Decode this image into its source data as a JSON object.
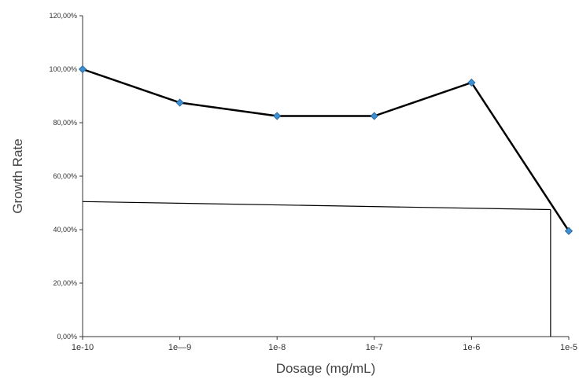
{
  "chart_data": {
    "type": "line",
    "xlabel": "Dosage  (mg/mL)",
    "ylabel": "Growth Rate",
    "x_scale": "log",
    "categories": [
      "1e-10",
      "1e—9",
      "1e-8",
      "1e-7",
      "1e-6",
      "1e-5"
    ],
    "x": [
      1e-10,
      1e-09,
      1e-08,
      1e-07,
      1e-06,
      1e-05
    ],
    "ylim": [
      0,
      120
    ],
    "y_ticks": [
      "0,00%",
      "20,00%",
      "40,00%",
      "60,00%",
      "80,00%",
      "100,00%",
      "120,00%"
    ],
    "grid": false,
    "legend": "none",
    "series": [
      {
        "values": [
          100,
          87.5,
          82.5,
          82.5,
          95,
          39.5
        ],
        "color": "#000000",
        "marker_color": "#3d8fd1"
      }
    ],
    "annotations": [
      {
        "type": "trend-line",
        "from": {
          "x": 1e-10,
          "y": 50.5
        },
        "to": {
          "x": 6.5e-06,
          "y": 47.5
        },
        "color": "#000000"
      },
      {
        "type": "drop-line",
        "x": 6.5e-06,
        "y_from": 47.5,
        "y_to": 0,
        "color": "#000000"
      }
    ]
  }
}
